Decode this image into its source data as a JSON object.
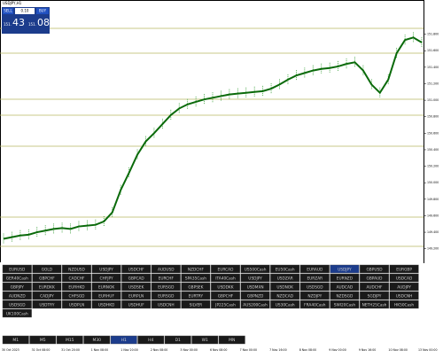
{
  "header": {
    "title": "USDJPY,H1"
  },
  "trade_panel": {
    "sell": "SELL",
    "lot": "0.10",
    "buy": "BUY",
    "sell_price_big": "43",
    "buy_price_big": "08",
    "sell_price_small": "151.",
    "buy_price_small": "151."
  },
  "chart": {
    "ylim": [
      149.1,
      152.0
    ],
    "yticks": [
      {
        "value": 149.2,
        "label": "149.200"
      },
      {
        "value": 149.4,
        "label": "149.400"
      },
      {
        "value": 149.6,
        "label": "149.600"
      },
      {
        "value": 149.8,
        "label": "149.800"
      },
      {
        "value": 150.0,
        "label": "150.000"
      },
      {
        "value": 150.2,
        "label": "150.200"
      },
      {
        "value": 150.4,
        "label": "150.400"
      },
      {
        "value": 150.6,
        "label": "150.600"
      },
      {
        "value": 150.8,
        "label": "150.800"
      },
      {
        "value": 151.0,
        "label": "151.000"
      },
      {
        "value": 151.2,
        "label": "151.200"
      },
      {
        "value": 151.4,
        "label": "151.400"
      },
      {
        "value": 151.6,
        "label": "151.600"
      },
      {
        "value": 151.8,
        "label": "151.800"
      }
    ],
    "closes": [
      149.32,
      149.34,
      149.36,
      149.37,
      149.4,
      149.42,
      149.44,
      149.45,
      149.44,
      149.47,
      149.48,
      149.49,
      149.53,
      149.64,
      149.91,
      150.12,
      150.34,
      150.5,
      150.6,
      150.71,
      150.82,
      150.9,
      150.95,
      150.98,
      151.01,
      151.03,
      151.05,
      151.07,
      151.08,
      151.09,
      151.1,
      151.11,
      151.14,
      151.19,
      151.25,
      151.3,
      151.33,
      151.36,
      151.38,
      151.39,
      151.41,
      151.44,
      151.46,
      151.36,
      151.19,
      151.09,
      151.25,
      151.57,
      151.73,
      151.76,
      151.7
    ],
    "dates": [
      "30 Oct 2023",
      "31 Oct 08:00",
      "31 Oct 20:00",
      "1 Nov 08:00",
      "1 Nov 20:00",
      "2 Nov 08:00",
      "3 Nov 00:00",
      "6 Nov 08:00",
      "7 Nov 00:00",
      "7 Nov 16:00",
      "8 Nov 08:00",
      "9 Nov 00:00",
      "9 Nov 16:00",
      "10 Nov 08:00",
      "13 Nov 00:00"
    ]
  },
  "symbols": [
    [
      "EURUSD",
      "GOLD",
      "NZDUSD",
      "USDJPY",
      "USDCHF",
      "AUDUSD",
      "NZDCHF",
      "EURCAD",
      "US500Cash",
      "EU50Cash",
      "EURAUD",
      "USDJPY",
      "GBPUSD",
      "EURGBP"
    ],
    [
      "GER40Cash",
      "GBPCHF",
      "CADCHF",
      "CHFJPY",
      "GBPCAD",
      "EURCHF",
      "SPA35Cash",
      "ITA40Cash",
      "USDJPY",
      "USDZAR",
      "EURZAR",
      "EURNZD",
      "GBPAUD",
      "USDCAD"
    ],
    [
      "GBPJPY",
      "EURDKK",
      "EURHKD",
      "EURNOK",
      "USDSEK",
      "EURSGD",
      "GBPSEK",
      "USDDKK",
      "USDMXN",
      "USDNOK",
      "USDSGD",
      "AUDCAD",
      "AUDCHF",
      "AUDJPY"
    ],
    [
      "AUDNZD",
      "CADJPY",
      "CHFSGD",
      "EURHUF",
      "EURPLN",
      "EURSGD",
      "EURTRY",
      "GBPCHF",
      "GBPNZD",
      "NZDCAD",
      "NZDJPY",
      "NZDSGD",
      "SGDJPY",
      "USDCNH"
    ],
    [
      "USDSGD",
      "USDTRY",
      "USDPLN",
      "USDHKD",
      "USDHUF",
      "USDCNH",
      "SILVER",
      "JP225Cash",
      "AUS200Cash",
      "US30Cash",
      "FRA40Cash",
      "SWI20Cash",
      "NETH25Cash",
      "HK50Cash"
    ],
    [
      "UK100Cash"
    ]
  ],
  "timeframes": [
    "M1",
    "M5",
    "M15",
    "M30",
    "H1",
    "H4",
    "D1",
    "W1",
    "MN"
  ]
}
